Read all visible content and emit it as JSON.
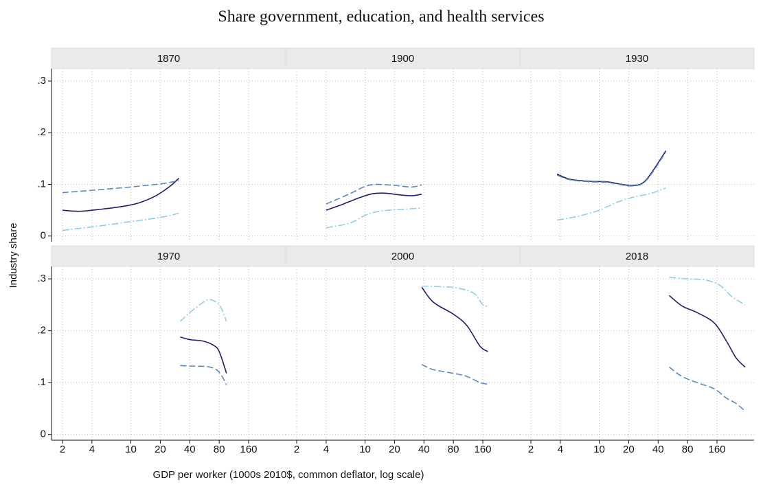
{
  "title": "Share government, education, and health services",
  "ylabel": "Industry share",
  "xlabel": "GDP per worker (1000s 2010$, common deflator, log scale)",
  "chart_data": [
    {
      "type": "line",
      "title": "1870",
      "xscale": "log",
      "xlim": [
        1.544,
        383
      ],
      "xticks": [
        2,
        4,
        10,
        20,
        40,
        80,
        160
      ],
      "ylim": [
        -0.011,
        0.324
      ],
      "yticks": [
        0,
        {
          "value": 0.1,
          "label": ".1"
        },
        {
          "value": 0.2,
          "label": ".2"
        },
        {
          "value": 0.3,
          "label": ".3"
        }
      ],
      "grid": true,
      "series": [
        {
          "color": "#1f1b6e",
          "linestyle": "solid",
          "x": [
            2,
            3,
            5,
            8,
            12,
            18,
            25,
            31
          ],
          "values": [
            0.05,
            0.048,
            0.052,
            0.057,
            0.064,
            0.078,
            0.096,
            0.112
          ]
        },
        {
          "color": "#5a88c2",
          "linestyle": "dash",
          "x": [
            2,
            5,
            10,
            20,
            31
          ],
          "values": [
            0.084,
            0.09,
            0.095,
            0.101,
            0.107
          ]
        },
        {
          "color": "#8ecfe8",
          "linestyle": "dashdot",
          "x": [
            2,
            5,
            10,
            20,
            31
          ],
          "values": [
            0.011,
            0.02,
            0.028,
            0.036,
            0.044
          ]
        }
      ]
    },
    {
      "type": "line",
      "title": "1900",
      "xscale": "log",
      "xlim": [
        1.544,
        383
      ],
      "xticks": [
        2,
        4,
        10,
        20,
        40,
        80,
        160
      ],
      "ylim": [
        -0.011,
        0.324
      ],
      "yticks": [
        0,
        {
          "value": 0.1,
          "label": ".1"
        },
        {
          "value": 0.2,
          "label": ".2"
        },
        {
          "value": 0.3,
          "label": ".3"
        }
      ],
      "grid": true,
      "series": [
        {
          "color": "#1f1b6e",
          "linestyle": "solid",
          "x": [
            4,
            6,
            9,
            12,
            16,
            22,
            30,
            38
          ],
          "values": [
            0.05,
            0.062,
            0.075,
            0.082,
            0.083,
            0.08,
            0.078,
            0.081
          ]
        },
        {
          "color": "#5a88c2",
          "linestyle": "dash",
          "x": [
            4,
            7,
            10,
            13,
            20,
            30,
            38
          ],
          "values": [
            0.062,
            0.082,
            0.096,
            0.1,
            0.098,
            0.095,
            0.099
          ]
        },
        {
          "color": "#8ecfe8",
          "linestyle": "dashdot",
          "x": [
            4,
            7,
            10,
            14,
            25,
            38
          ],
          "values": [
            0.016,
            0.025,
            0.04,
            0.048,
            0.052,
            0.054
          ]
        }
      ]
    },
    {
      "type": "line",
      "title": "1930",
      "xscale": "log",
      "xlim": [
        1.544,
        383
      ],
      "xticks": [
        2,
        4,
        10,
        20,
        40,
        80,
        160
      ],
      "ylim": [
        -0.011,
        0.324
      ],
      "yticks": [
        0,
        {
          "value": 0.1,
          "label": ".1"
        },
        {
          "value": 0.2,
          "label": ".2"
        },
        {
          "value": 0.3,
          "label": ".3"
        }
      ],
      "grid": true,
      "series": [
        {
          "color": "#1f1b6e",
          "linestyle": "solid",
          "x": [
            3.7,
            5,
            8,
            12,
            17,
            22,
            28,
            35,
            48
          ],
          "values": [
            0.12,
            0.11,
            0.106,
            0.105,
            0.1,
            0.098,
            0.103,
            0.125,
            0.165
          ]
        },
        {
          "color": "#5a88c2",
          "linestyle": "dash",
          "x": [
            3.7,
            5,
            8,
            12,
            17,
            22,
            28,
            35,
            48
          ],
          "values": [
            0.118,
            0.109,
            0.105,
            0.104,
            0.099,
            0.097,
            0.102,
            0.123,
            0.163
          ]
        },
        {
          "color": "#8ecfe8",
          "linestyle": "dashdot",
          "x": [
            3.7,
            6,
            10,
            15,
            22,
            33,
            48
          ],
          "values": [
            0.031,
            0.038,
            0.05,
            0.065,
            0.075,
            0.082,
            0.093
          ]
        }
      ]
    },
    {
      "type": "line",
      "title": "1970",
      "xscale": "log",
      "xlim": [
        1.544,
        383
      ],
      "xticks": [
        2,
        4,
        10,
        20,
        40,
        80,
        160
      ],
      "ylim": [
        -0.011,
        0.324
      ],
      "yticks": [
        0,
        {
          "value": 0.1,
          "label": ".1"
        },
        {
          "value": 0.2,
          "label": ".2"
        },
        {
          "value": 0.3,
          "label": ".3"
        }
      ],
      "grid": true,
      "series": [
        {
          "color": "#1f1b6e",
          "linestyle": "solid",
          "x": [
            32,
            40,
            55,
            70,
            80,
            95
          ],
          "values": [
            0.188,
            0.183,
            0.18,
            0.172,
            0.16,
            0.118
          ]
        },
        {
          "color": "#5a88c2",
          "linestyle": "dash",
          "x": [
            32,
            40,
            60,
            75,
            85,
            95
          ],
          "values": [
            0.133,
            0.132,
            0.131,
            0.125,
            0.113,
            0.096
          ]
        },
        {
          "color": "#8ecfe8",
          "linestyle": "dashdot",
          "x": [
            32,
            40,
            55,
            65,
            80,
            90,
            95
          ],
          "values": [
            0.218,
            0.235,
            0.255,
            0.26,
            0.25,
            0.23,
            0.218
          ]
        }
      ]
    },
    {
      "type": "line",
      "title": "2000",
      "xscale": "log",
      "xlim": [
        1.544,
        383
      ],
      "xticks": [
        2,
        4,
        10,
        20,
        40,
        80,
        160
      ],
      "ylim": [
        -0.011,
        0.324
      ],
      "yticks": [
        0,
        {
          "value": 0.1,
          "label": ".1"
        },
        {
          "value": 0.2,
          "label": ".2"
        },
        {
          "value": 0.3,
          "label": ".3"
        }
      ],
      "grid": true,
      "series": [
        {
          "color": "#1f1b6e",
          "linestyle": "solid",
          "x": [
            38,
            50,
            80,
            110,
            150,
            180
          ],
          "values": [
            0.284,
            0.255,
            0.232,
            0.21,
            0.17,
            0.16
          ]
        },
        {
          "color": "#5a88c2",
          "linestyle": "dash",
          "x": [
            38,
            50,
            80,
            110,
            150,
            180
          ],
          "values": [
            0.135,
            0.125,
            0.118,
            0.112,
            0.1,
            0.097
          ]
        },
        {
          "color": "#8ecfe8",
          "linestyle": "dashdot",
          "x": [
            38,
            60,
            90,
            130,
            160,
            180
          ],
          "values": [
            0.286,
            0.285,
            0.282,
            0.272,
            0.25,
            0.248
          ]
        }
      ]
    },
    {
      "type": "line",
      "title": "2018",
      "xscale": "log",
      "xlim": [
        1.544,
        383
      ],
      "xticks": [
        2,
        4,
        10,
        20,
        40,
        80,
        160
      ],
      "ylim": [
        -0.011,
        0.324
      ],
      "yticks": [
        0,
        {
          "value": 0.1,
          "label": ".1"
        },
        {
          "value": 0.2,
          "label": ".2"
        },
        {
          "value": 0.3,
          "label": ".3"
        }
      ],
      "grid": true,
      "series": [
        {
          "color": "#1f1b6e",
          "linestyle": "solid",
          "x": [
            52,
            70,
            100,
            150,
            200,
            250,
            310
          ],
          "values": [
            0.268,
            0.248,
            0.235,
            0.215,
            0.18,
            0.148,
            0.13
          ]
        },
        {
          "color": "#5a88c2",
          "linestyle": "dash",
          "x": [
            52,
            70,
            100,
            150,
            200,
            250,
            310
          ],
          "values": [
            0.13,
            0.112,
            0.1,
            0.088,
            0.07,
            0.06,
            0.045
          ]
        },
        {
          "color": "#8ecfe8",
          "linestyle": "dashdot",
          "x": [
            52,
            80,
            120,
            170,
            230,
            310
          ],
          "values": [
            0.303,
            0.3,
            0.298,
            0.288,
            0.265,
            0.25
          ]
        }
      ]
    }
  ]
}
